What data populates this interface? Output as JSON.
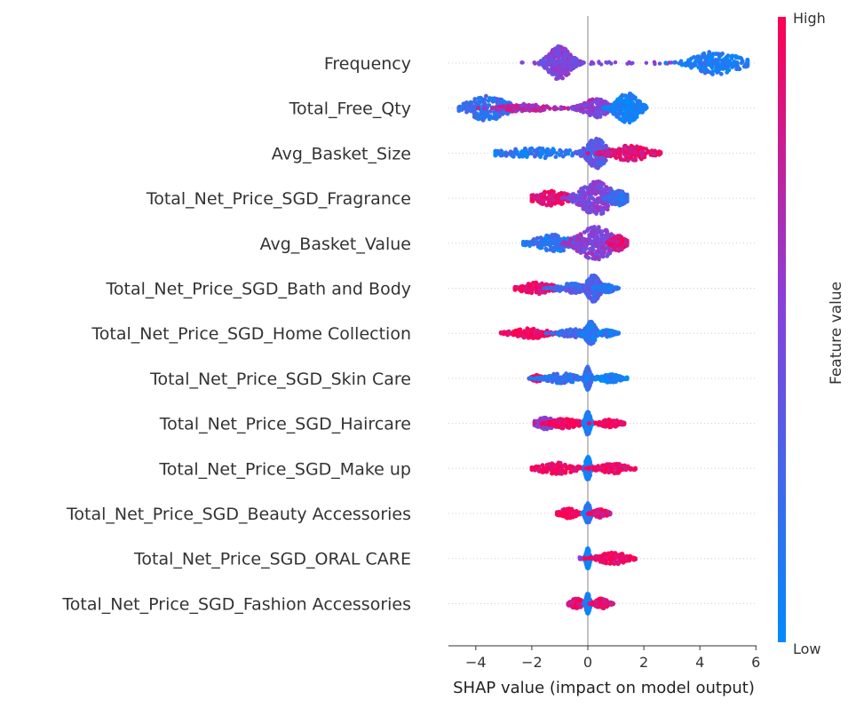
{
  "chart_data": {
    "type": "scatter",
    "subtype": "shap-beeswarm",
    "xlabel": "SHAP value (impact on model output)",
    "xlim": [
      -5,
      6
    ],
    "xticks": [
      -4,
      -2,
      0,
      2,
      4,
      6
    ],
    "xtick_labels": [
      "−4",
      "−2",
      "0",
      "2",
      "4",
      "6"
    ],
    "colorbar": {
      "label": "Feature value",
      "high_label": "High",
      "low_label": "Low",
      "high_color": "#ff0052",
      "low_color": "#008bfb"
    },
    "features": [
      {
        "name": "Frequency",
        "min": -2.4,
        "max": 5.7,
        "clusters": [
          [
            -1.0,
            0.35,
            1.0,
            0.5
          ],
          [
            4.6,
            0.7,
            0.7,
            0.1
          ]
        ]
      },
      {
        "name": "Total_Free_Qty",
        "min": -4.6,
        "max": 2.1,
        "clusters": [
          [
            -3.6,
            0.6,
            0.75,
            0.2
          ],
          [
            -2.2,
            0.7,
            0.25,
            0.7
          ],
          [
            0.3,
            0.4,
            0.55,
            0.55
          ],
          [
            1.4,
            0.35,
            0.9,
            0.05
          ]
        ]
      },
      {
        "name": "Avg_Basket_Size",
        "min": -3.3,
        "max": 2.6,
        "clusters": [
          [
            -1.8,
            1.2,
            0.3,
            0.15
          ],
          [
            0.3,
            0.3,
            0.9,
            0.35
          ],
          [
            1.5,
            0.6,
            0.45,
            0.9
          ]
        ]
      },
      {
        "name": "Total_Net_Price_SGD_Fragrance",
        "min": -2.0,
        "max": 1.4,
        "clusters": [
          [
            -1.3,
            0.5,
            0.45,
            0.9
          ],
          [
            0.3,
            0.5,
            1.0,
            0.5
          ],
          [
            1.1,
            0.25,
            0.45,
            0.2
          ]
        ]
      },
      {
        "name": "Avg_Basket_Value",
        "min": -2.3,
        "max": 1.4,
        "clusters": [
          [
            -1.2,
            0.6,
            0.5,
            0.15
          ],
          [
            0.3,
            0.55,
            1.0,
            0.55
          ],
          [
            1.1,
            0.2,
            0.45,
            0.85
          ]
        ]
      },
      {
        "name": "Total_Net_Price_SGD_Bath and Body",
        "min": -2.6,
        "max": 1.1,
        "clusters": [
          [
            -1.8,
            0.5,
            0.35,
            0.95
          ],
          [
            -0.6,
            0.4,
            0.3,
            0.3
          ],
          [
            0.2,
            0.2,
            0.8,
            0.3
          ],
          [
            0.7,
            0.2,
            0.25,
            0.15
          ]
        ]
      },
      {
        "name": "Total_Net_Price_SGD_Home Collection",
        "min": -3.1,
        "max": 1.1,
        "clusters": [
          [
            -2.0,
            0.6,
            0.3,
            0.95
          ],
          [
            -0.5,
            0.4,
            0.25,
            0.25
          ],
          [
            0.1,
            0.15,
            0.7,
            0.15
          ],
          [
            0.7,
            0.2,
            0.2,
            0.1
          ]
        ]
      },
      {
        "name": "Total_Net_Price_SGD_Skin Care",
        "min": -2.1,
        "max": 1.4,
        "clusters": [
          [
            -1.8,
            0.15,
            0.2,
            0.95
          ],
          [
            -0.9,
            0.5,
            0.3,
            0.2
          ],
          [
            0.0,
            0.08,
            0.7,
            0.2
          ],
          [
            0.8,
            0.35,
            0.25,
            0.1
          ]
        ]
      },
      {
        "name": "Total_Net_Price_SGD_Haircare",
        "min": -1.9,
        "max": 1.3,
        "clusters": [
          [
            -1.5,
            0.3,
            0.35,
            0.55
          ],
          [
            -0.8,
            0.4,
            0.3,
            0.95
          ],
          [
            0.0,
            0.08,
            0.7,
            0.1
          ],
          [
            0.8,
            0.3,
            0.25,
            0.95
          ]
        ]
      },
      {
        "name": "Total_Net_Price_SGD_Make up",
        "min": -2.0,
        "max": 1.7,
        "clusters": [
          [
            -1.1,
            0.55,
            0.35,
            0.95
          ],
          [
            0.0,
            0.08,
            0.7,
            0.05
          ],
          [
            0.9,
            0.45,
            0.3,
            0.95
          ]
        ]
      },
      {
        "name": "Total_Net_Price_SGD_Beauty Accessories",
        "min": -1.1,
        "max": 0.8,
        "clusters": [
          [
            -0.7,
            0.25,
            0.3,
            0.95
          ],
          [
            0.0,
            0.08,
            0.6,
            0.1
          ],
          [
            0.45,
            0.2,
            0.25,
            0.9
          ]
        ]
      },
      {
        "name": "Total_Net_Price_SGD_ORAL CARE",
        "min": -0.3,
        "max": 1.7,
        "clusters": [
          [
            0.0,
            0.06,
            0.6,
            0.05
          ],
          [
            0.9,
            0.45,
            0.35,
            0.95
          ]
        ]
      },
      {
        "name": "Total_Net_Price_SGD_Fashion Accessories",
        "min": -0.7,
        "max": 0.9,
        "clusters": [
          [
            -0.4,
            0.2,
            0.3,
            0.9
          ],
          [
            0.0,
            0.06,
            0.6,
            0.05
          ],
          [
            0.5,
            0.2,
            0.3,
            0.9
          ]
        ]
      }
    ]
  }
}
